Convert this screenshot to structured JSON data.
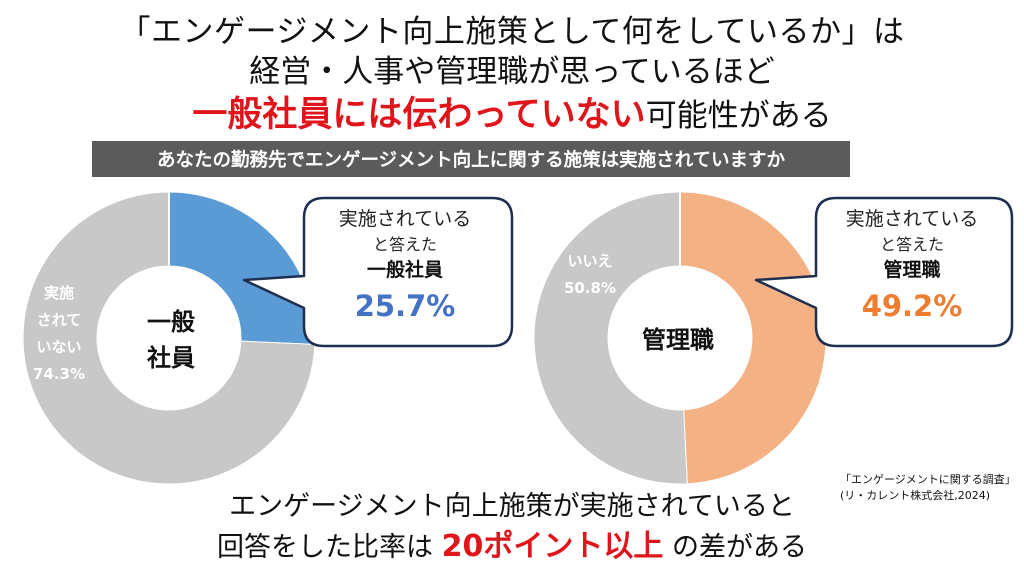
{
  "title": {
    "line1": "「エンゲージメント向上施策として何をしているか」は",
    "line2": "経営・人事や管理職が思っているほど",
    "line3_emph": "一般社員には伝わっていない",
    "line3_rest": "可能性がある"
  },
  "question": "あなたの勤務先でエンゲージメント向上に関する施策は実施されていますか",
  "colors": {
    "general_yes": "#5b9bd5",
    "manager_yes": "#f4b183",
    "no": "#c8c8c8",
    "accent_red": "#e0141b",
    "general_pct": "#4472c4",
    "manager_pct": "#ed7d31",
    "bubble_border": "#1f2f4f"
  },
  "chart_data": [
    {
      "type": "pie",
      "title": "一般社員",
      "labels": [
        "実施されている",
        "実施されていない"
      ],
      "values": [
        25.7,
        74.3
      ],
      "colors": [
        "#5b9bd5",
        "#c8c8c8"
      ],
      "segment_label_lines": [
        "実施",
        "されて",
        "いない",
        "74.3%"
      ],
      "center_lines": [
        "一般",
        "社員"
      ],
      "callout": {
        "line1": "実施されている",
        "line2": "と答えた",
        "line3": "一般社員",
        "value_text": "25.7%"
      }
    },
    {
      "type": "pie",
      "title": "管理職",
      "labels": [
        "実施されている",
        "いいえ"
      ],
      "values": [
        49.2,
        50.8
      ],
      "colors": [
        "#f4b183",
        "#c8c8c8"
      ],
      "segment_label_lines": [
        "いいえ",
        "50.8%"
      ],
      "center_lines": [
        "管理職"
      ],
      "callout": {
        "line1": "実施されている",
        "line2": "と答えた",
        "line3": "管理職",
        "value_text": "49.2%"
      }
    }
  ],
  "bottom": {
    "line1": "エンゲージメント向上施策が実施されていると",
    "line2_pre": "回答をした比率は",
    "line2_emph": "20ポイント以上",
    "line2_post": "の差がある"
  },
  "source": {
    "line1": "「エンゲージメントに関する調査」",
    "line2": "(リ・カレント株式会社,2024)"
  }
}
